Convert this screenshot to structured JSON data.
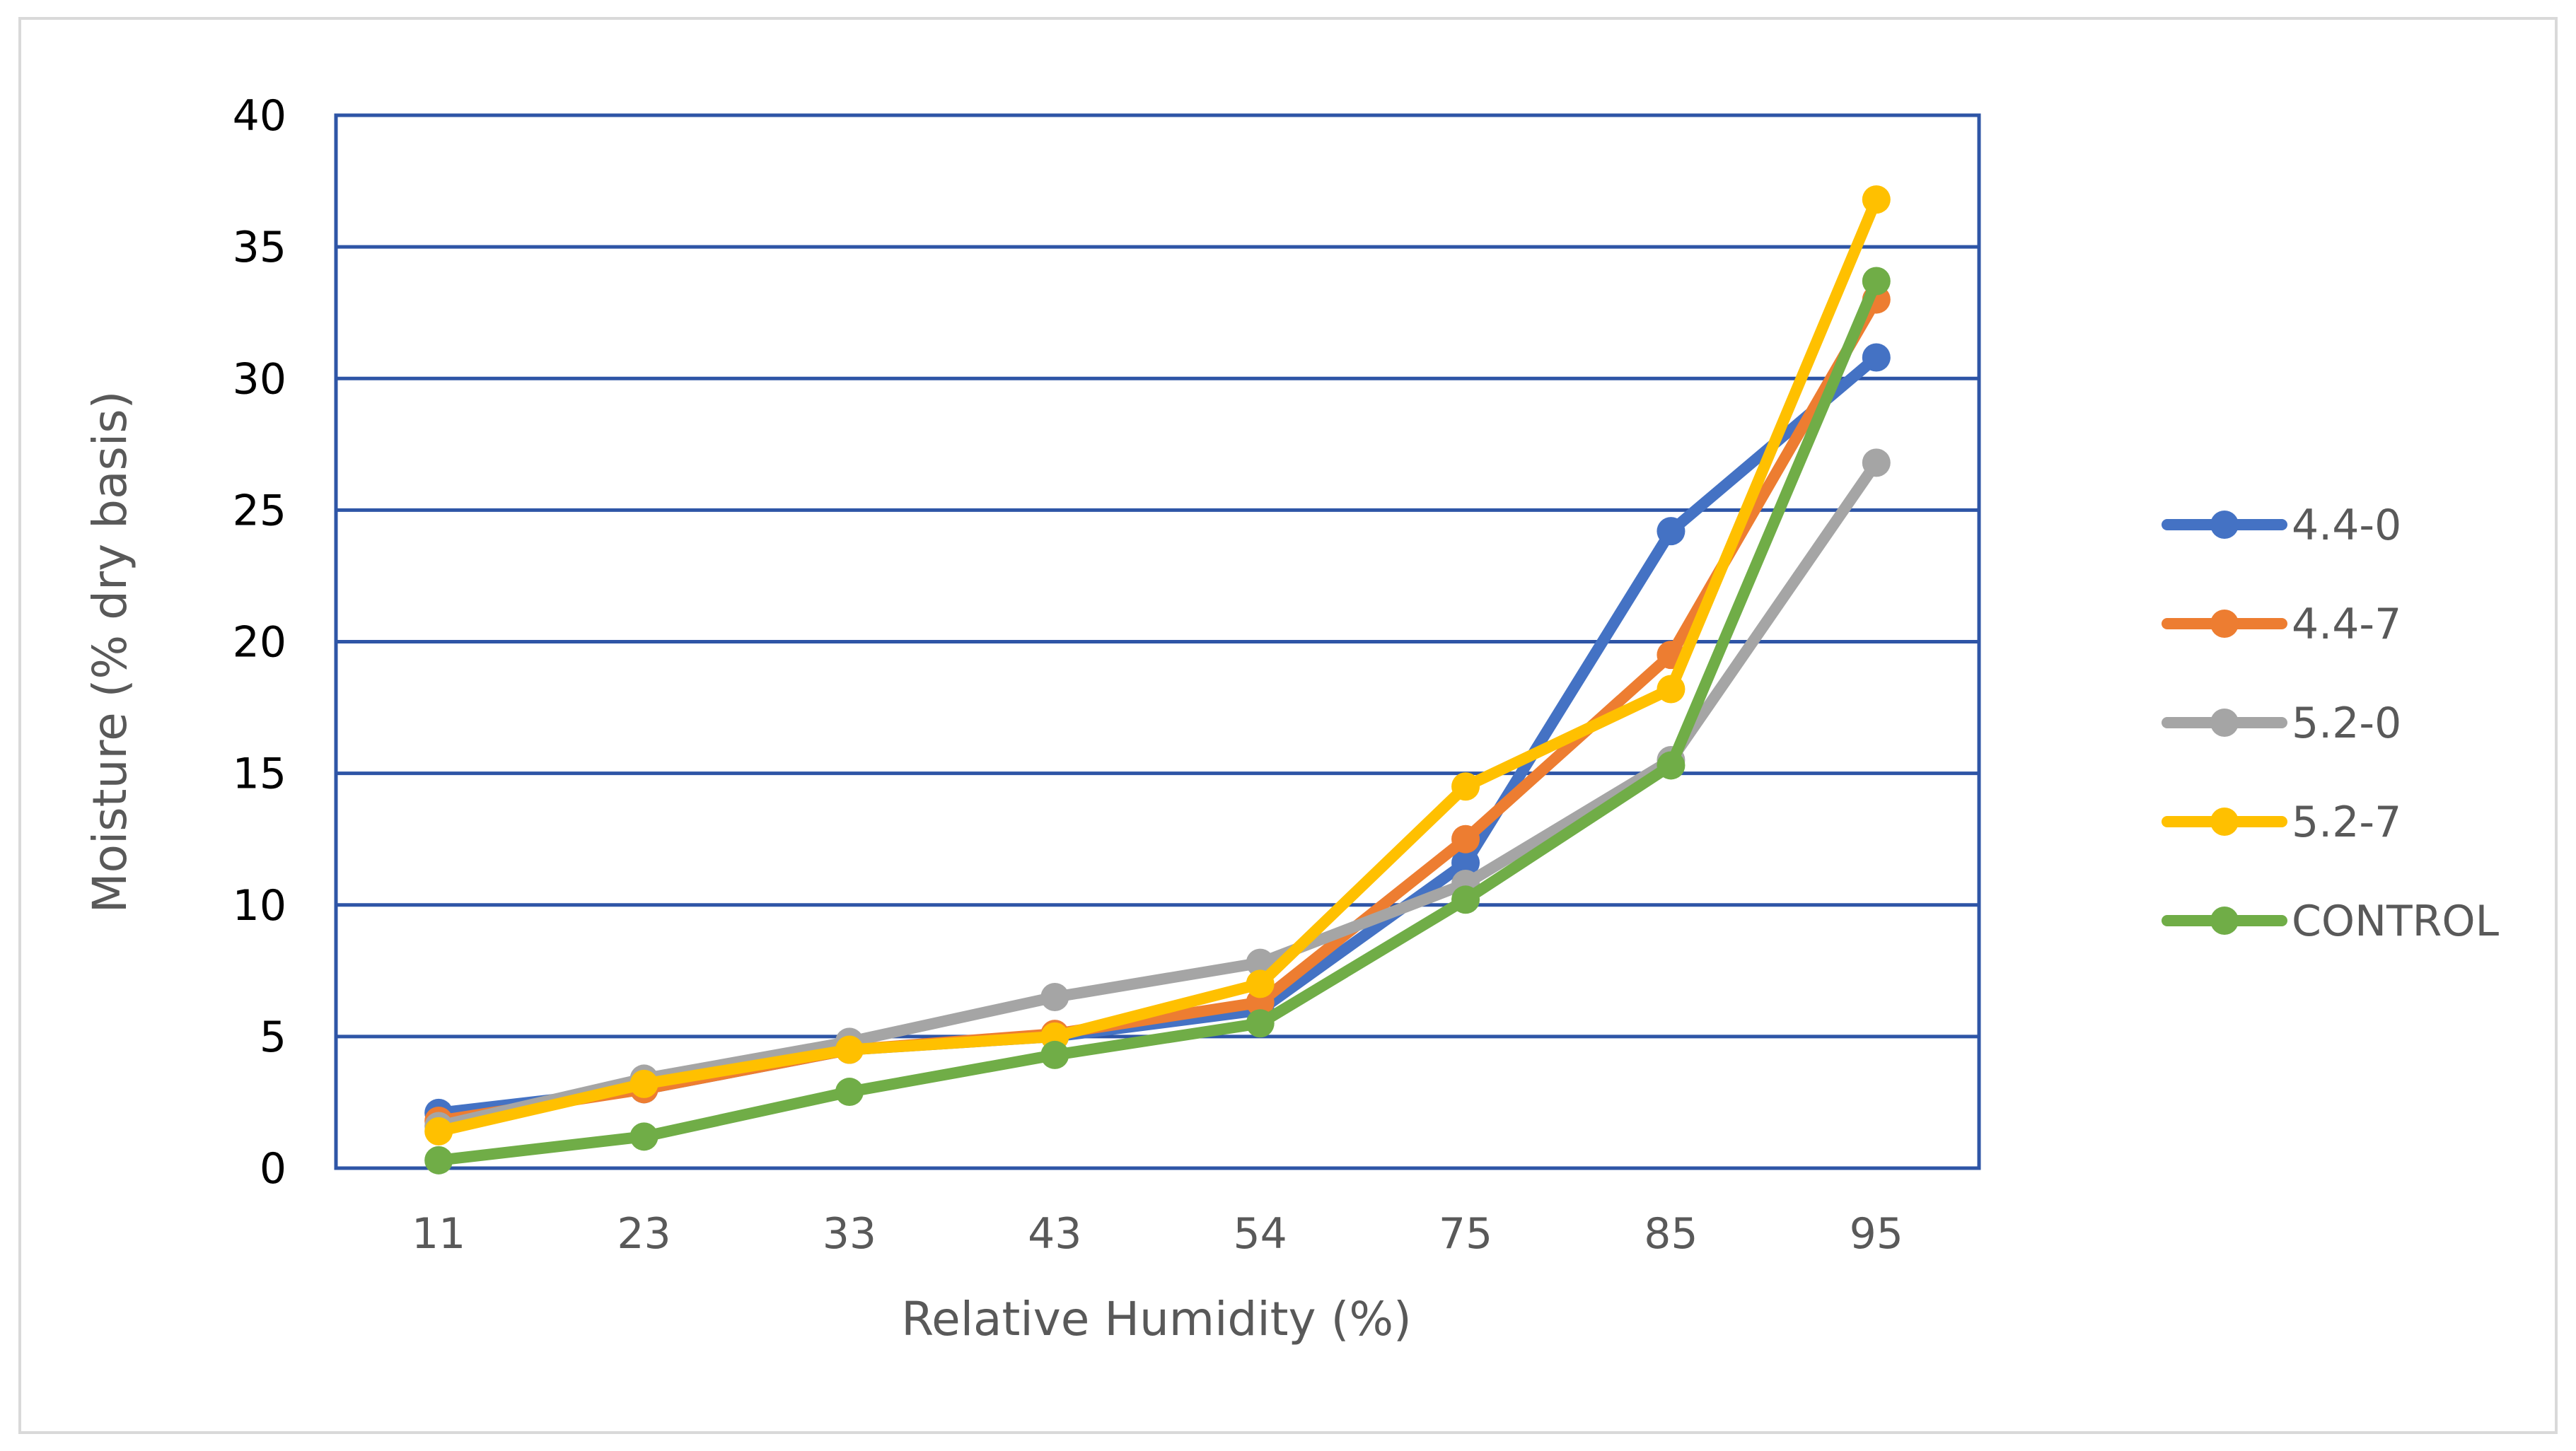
{
  "chart_data": {
    "type": "line",
    "title": "",
    "xlabel": "Relative Humidity (%)",
    "ylabel": "Moisture (% dry basis)",
    "categories": [
      "11",
      "23",
      "33",
      "43",
      "54",
      "75",
      "85",
      "95"
    ],
    "ylim": [
      0,
      40
    ],
    "yticks": [
      0,
      5,
      10,
      15,
      20,
      25,
      30,
      35,
      40
    ],
    "grid": true,
    "legend_position": "right",
    "series": [
      {
        "name": "4.4-0",
        "color": "#4472C4",
        "values": [
          2.1,
          3.0,
          4.5,
          5.0,
          6.0,
          11.6,
          24.2,
          30.8
        ]
      },
      {
        "name": "4.4-7",
        "color": "#ED7D31",
        "values": [
          1.8,
          3.0,
          4.5,
          5.1,
          6.3,
          12.5,
          19.5,
          33.0
        ]
      },
      {
        "name": "5.2-0",
        "color": "#A5A5A5",
        "values": [
          1.6,
          3.4,
          4.8,
          6.5,
          7.8,
          10.8,
          15.5,
          26.8
        ]
      },
      {
        "name": "5.2-7",
        "color": "#FFC000",
        "values": [
          1.4,
          3.2,
          4.5,
          5.0,
          7.0,
          14.5,
          18.2,
          36.8
        ]
      },
      {
        "name": "CONTROL",
        "color": "#70AD47",
        "values": [
          0.3,
          1.2,
          2.9,
          4.3,
          5.5,
          10.2,
          15.3,
          33.7
        ]
      }
    ]
  }
}
